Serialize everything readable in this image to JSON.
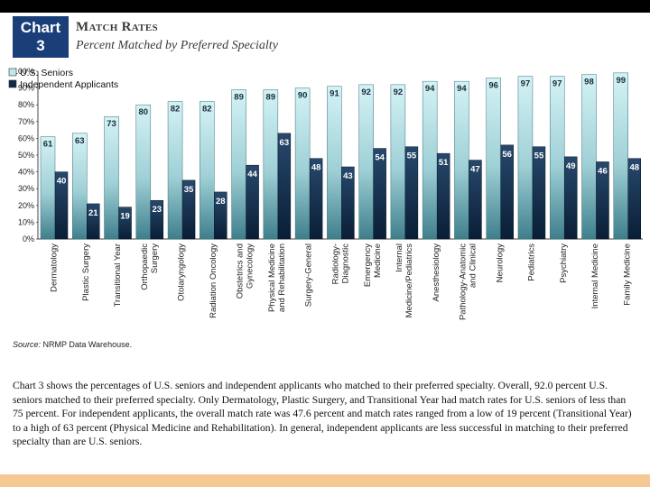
{
  "header": {
    "chart_tag_line1": "Chart",
    "chart_tag_line2": "3",
    "title": "Match Rates",
    "subtitle": "Percent Matched by Preferred Specialty"
  },
  "chart_data": {
    "type": "bar",
    "title": "Match Rates",
    "subtitle": "Percent Matched by Preferred Specialty",
    "xlabel": "",
    "ylabel": "",
    "ylim": [
      0,
      100
    ],
    "yticks": [
      "0%",
      "10%",
      "20%",
      "30%",
      "40%",
      "50%",
      "60%",
      "70%",
      "80%",
      "90%",
      "100%"
    ],
    "legend_position": "top-left",
    "categories": [
      [
        "Dermatology"
      ],
      [
        "Plastic Surgery"
      ],
      [
        "Transitional Year"
      ],
      [
        "Orthopaedic",
        "Surgery"
      ],
      [
        "Otolaryngology"
      ],
      [
        "Radiation Oncology"
      ],
      [
        "Obstetrics and",
        "Gynecology"
      ],
      [
        "Physical Medicine",
        "and Rehabilitation"
      ],
      [
        "Surgery-General"
      ],
      [
        "Radiology-",
        "Diagnostic"
      ],
      [
        "Emergency",
        "Medicine"
      ],
      [
        "Internal",
        "Medicine/Pediatrics"
      ],
      [
        "Anesthesiology"
      ],
      [
        "Pathology-Anatomic",
        "and Clinical"
      ],
      [
        "Neurology"
      ],
      [
        "Pediatrics"
      ],
      [
        "Psychiatry"
      ],
      [
        "Internal Medicine"
      ],
      [
        "Family Medicine"
      ]
    ],
    "series": [
      {
        "name": "U.S. Seniors",
        "color": "#bde8ec",
        "values": [
          61,
          63,
          73,
          80,
          82,
          82,
          89,
          89,
          90,
          91,
          92,
          92,
          94,
          94,
          96,
          97,
          97,
          98,
          99
        ]
      },
      {
        "name": "Independent Applicants",
        "color": "#0e2a4a",
        "values": [
          40,
          21,
          19,
          23,
          35,
          28,
          44,
          63,
          48,
          43,
          54,
          55,
          51,
          47,
          56,
          55,
          49,
          46,
          48
        ]
      }
    ]
  },
  "source": {
    "label": "Source:",
    "text": "NRMP Data Warehouse."
  },
  "paragraph": "Chart 3 shows the percentages of U.S. seniors and independent applicants who matched to their preferred specialty. Overall, 92.0 percent U.S. seniors matched to their preferred specialty.  Only Dermatology, Plastic Surgery, and Transitional Year had match rates for U.S. seniors of less than 75 percent.  For independent applicants, the overall match rate was 47.6 percent and match rates ranged from a low of 19 percent (Transitional Year) to a high of 63 percent (Physical Medicine and Rehabilitation).  In general, independent applicants are less successful in matching to their preferred specialty than are U.S. seniors."
}
